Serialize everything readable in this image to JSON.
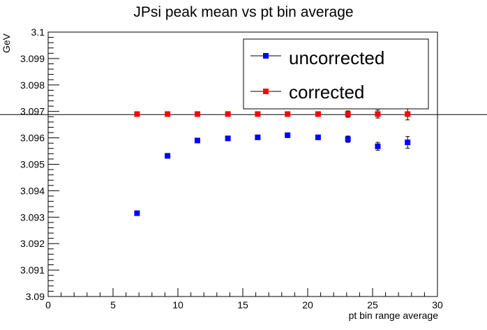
{
  "chart_data": {
    "type": "scatter",
    "title": "JPsi peak mean vs pt bin average",
    "xlabel": "pt bin range average",
    "ylabel": "GeV",
    "xlim": [
      0,
      30
    ],
    "ylim": [
      3.09,
      3.1
    ],
    "x_ticks": [
      0,
      5,
      10,
      15,
      20,
      25,
      30
    ],
    "y_ticks": [
      3.09,
      3.091,
      3.092,
      3.093,
      3.094,
      3.095,
      3.096,
      3.097,
      3.098,
      3.099,
      3.1
    ],
    "x_tick_labels": [
      "0",
      "5",
      "10",
      "15",
      "20",
      "25",
      "30"
    ],
    "y_tick_labels": [
      "3.09",
      "3.091",
      "3.092",
      "3.093",
      "3.094",
      "3.095",
      "3.096",
      "3.097",
      "3.098",
      "3.099",
      "3.1"
    ],
    "reference_line_y": 3.09688,
    "grid": false,
    "legend_position": "top-right",
    "series": [
      {
        "name": "uncorrected",
        "color": "#0000ff",
        "x": [
          6.85,
          9.2,
          11.5,
          13.85,
          16.15,
          18.45,
          20.8,
          23.1,
          25.4,
          27.7
        ],
        "y": [
          3.09315,
          3.09532,
          3.0959,
          3.09598,
          3.09602,
          3.0961,
          3.09602,
          3.09595,
          3.09568,
          3.09583
        ],
        "yerr": [
          3e-05,
          3e-05,
          3e-05,
          4e-05,
          5e-05,
          6e-05,
          8e-05,
          0.00012,
          0.00015,
          0.00022
        ]
      },
      {
        "name": "corrected",
        "color": "#ff0000",
        "x": [
          6.85,
          9.2,
          11.5,
          13.85,
          16.15,
          18.45,
          20.8,
          23.1,
          25.4,
          27.7
        ],
        "y": [
          3.0969,
          3.0969,
          3.0969,
          3.0969,
          3.0969,
          3.0969,
          3.0969,
          3.0969,
          3.0969,
          3.0969
        ],
        "yerr": [
          3e-05,
          3e-05,
          3e-05,
          4e-05,
          5e-05,
          6e-05,
          8e-05,
          0.00012,
          0.00015,
          0.00022
        ]
      }
    ]
  }
}
